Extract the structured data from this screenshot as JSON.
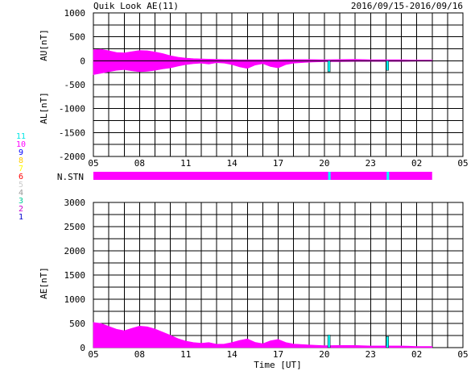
{
  "header": {
    "title": "Quik Look AE(11)",
    "date_range": "2016/09/15-2016/09/16"
  },
  "colors": {
    "fill": "#ff00ff",
    "station_spike": "#00ffff",
    "axis": "#000000"
  },
  "station_legend": [
    {
      "label": "11",
      "color": "#00e5e5"
    },
    {
      "label": "10",
      "color": "#ff00ff"
    },
    {
      "label": "9",
      "color": "#0000ff"
    },
    {
      "label": "8",
      "color": "#ffcc00"
    },
    {
      "label": "7",
      "color": "#ffff00"
    },
    {
      "label": "6",
      "color": "#ff0000"
    },
    {
      "label": "5",
      "color": "#cccccc"
    },
    {
      "label": "4",
      "color": "#999999"
    },
    {
      "label": "3",
      "color": "#00cc99"
    },
    {
      "label": "2",
      "color": "#cc00cc"
    },
    {
      "label": "1",
      "color": "#0000cc"
    }
  ],
  "chart_data": [
    {
      "type": "area",
      "panel": "AU/AL",
      "ylabel_upper": "AU[nT]",
      "ylabel_lower": "AL[nT]",
      "ylim": [
        -2000,
        1000
      ],
      "yticks": [
        "1000",
        "500",
        "0",
        "-500",
        "-1000",
        "-1500",
        "-2000"
      ],
      "xticks": [
        "05",
        "08",
        "11",
        "14",
        "17",
        "20",
        "23",
        "02",
        "05"
      ],
      "xlim_hours": [
        5,
        29
      ],
      "data_end_hour": 27.0,
      "au_series": {
        "name": "AU",
        "x_hours": [
          5,
          5.5,
          6,
          6.5,
          7,
          7.5,
          8,
          8.5,
          9,
          9.5,
          10,
          10.5,
          11,
          11.5,
          12,
          12.5,
          13,
          13.5,
          14,
          14.5,
          15,
          15.5,
          16,
          16.5,
          17,
          17.5,
          18,
          19,
          20,
          21,
          22,
          23,
          24,
          25,
          26,
          27
        ],
        "values": [
          230,
          240,
          210,
          175,
          165,
          190,
          215,
          210,
          185,
          150,
          105,
          75,
          55,
          45,
          40,
          35,
          30,
          25,
          25,
          20,
          20,
          20,
          20,
          20,
          20,
          25,
          25,
          25,
          20,
          25,
          30,
          20,
          20,
          20,
          15,
          15
        ]
      },
      "al_series": {
        "name": "AL",
        "x_hours": [
          5,
          5.5,
          6,
          6.5,
          7,
          7.5,
          8,
          8.5,
          9,
          9.5,
          10,
          10.5,
          11,
          11.5,
          12,
          12.5,
          13,
          13.5,
          14,
          14.5,
          15,
          15.5,
          16,
          16.5,
          17,
          17.5,
          18,
          19,
          20,
          21,
          22,
          23,
          24,
          25,
          26,
          27
        ],
        "values": [
          -290,
          -260,
          -230,
          -200,
          -185,
          -210,
          -230,
          -220,
          -200,
          -170,
          -150,
          -110,
          -80,
          -60,
          -50,
          -70,
          -40,
          -50,
          -80,
          -130,
          -160,
          -90,
          -60,
          -120,
          -150,
          -80,
          -50,
          -30,
          -20,
          -20,
          -15,
          -15,
          -15,
          -15,
          -10,
          -10
        ]
      },
      "spikes": [
        {
          "hour": 20.3,
          "from": 0,
          "to": -230
        },
        {
          "hour": 24.1,
          "from": 0,
          "to": -200
        }
      ]
    },
    {
      "type": "bar",
      "panel": "N.STN",
      "ylabel": "N.STN",
      "station_count": 10,
      "xlim_hours": [
        5,
        29
      ],
      "data_end_hour": 27.0,
      "dropouts": [
        {
          "hour": 20.3,
          "station_count": 11
        },
        {
          "hour": 24.1,
          "station_count": 11
        }
      ]
    },
    {
      "type": "area",
      "panel": "AE",
      "ylabel": "AE[nT]",
      "xlabel": "Time [UT]",
      "ylim": [
        0,
        3000
      ],
      "yticks": [
        "3000",
        "2500",
        "2000",
        "1500",
        "1000",
        "500",
        "0"
      ],
      "xticks": [
        "05",
        "08",
        "11",
        "14",
        "17",
        "20",
        "23",
        "02",
        "05"
      ],
      "xlim_hours": [
        5,
        29
      ],
      "data_end_hour": 27.0,
      "ae_series": {
        "name": "AE",
        "x_hours": [
          5,
          5.5,
          6,
          6.5,
          7,
          7.5,
          8,
          8.5,
          9,
          9.5,
          10,
          10.5,
          11,
          11.5,
          12,
          12.5,
          13,
          13.5,
          14,
          14.5,
          15,
          15.5,
          16,
          16.5,
          17,
          17.5,
          18,
          19,
          20,
          21,
          22,
          23,
          24,
          25,
          26,
          27
        ],
        "values": [
          520,
          500,
          440,
          380,
          350,
          400,
          445,
          430,
          385,
          320,
          255,
          185,
          135,
          105,
          90,
          105,
          70,
          75,
          105,
          150,
          180,
          110,
          80,
          140,
          170,
          105,
          75,
          55,
          40,
          45,
          45,
          35,
          35,
          35,
          25,
          25
        ]
      },
      "spikes": [
        {
          "hour": 20.3,
          "from": 0,
          "to": 260
        },
        {
          "hour": 24.1,
          "from": 0,
          "to": 230
        }
      ]
    }
  ]
}
